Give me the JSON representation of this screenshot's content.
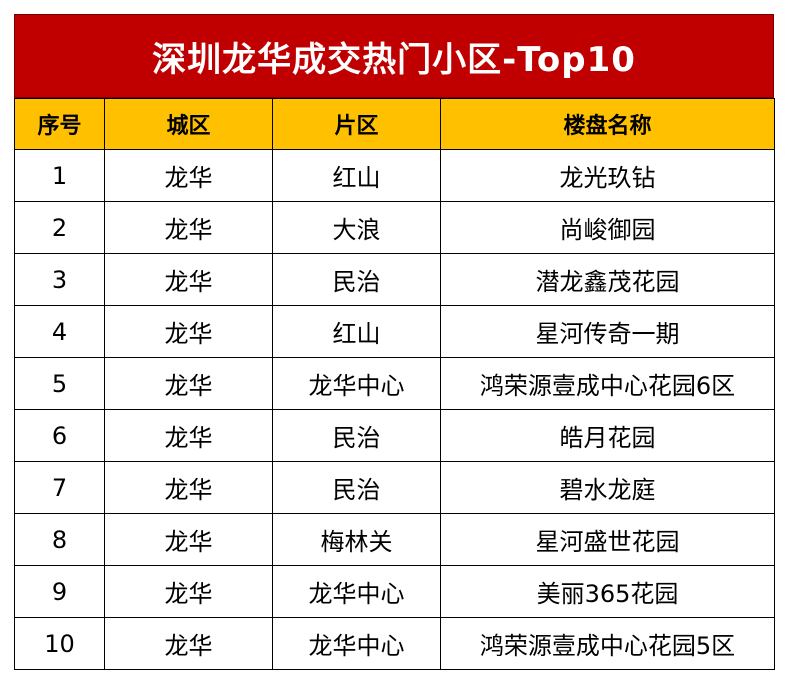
{
  "title": "深圳龙华成交热门小区-Top10",
  "headers": {
    "index": "序号",
    "city_district": "城区",
    "area": "片区",
    "estate_name": "楼盘名称"
  },
  "rows": [
    {
      "index": "1",
      "city_district": "龙华",
      "area": "红山",
      "estate_name": "龙光玖钻"
    },
    {
      "index": "2",
      "city_district": "龙华",
      "area": "大浪",
      "estate_name": "尚峻御园"
    },
    {
      "index": "3",
      "city_district": "龙华",
      "area": "民治",
      "estate_name": "潜龙鑫茂花园"
    },
    {
      "index": "4",
      "city_district": "龙华",
      "area": "红山",
      "estate_name": "星河传奇一期"
    },
    {
      "index": "5",
      "city_district": "龙华",
      "area": "龙华中心",
      "estate_name": "鸿荣源壹成中心花园6区"
    },
    {
      "index": "6",
      "city_district": "龙华",
      "area": "民治",
      "estate_name": "皓月花园"
    },
    {
      "index": "7",
      "city_district": "龙华",
      "area": "民治",
      "estate_name": "碧水龙庭"
    },
    {
      "index": "8",
      "city_district": "龙华",
      "area": "梅林关",
      "estate_name": "星河盛世花园"
    },
    {
      "index": "9",
      "city_district": "龙华",
      "area": "龙华中心",
      "estate_name": "美丽365花园"
    },
    {
      "index": "10",
      "city_district": "龙华",
      "area": "龙华中心",
      "estate_name": "鸿荣源壹成中心花园5区"
    }
  ],
  "colors": {
    "title_bg": "#c00000",
    "title_text": "#ffffff",
    "header_bg": "#ffc000"
  }
}
